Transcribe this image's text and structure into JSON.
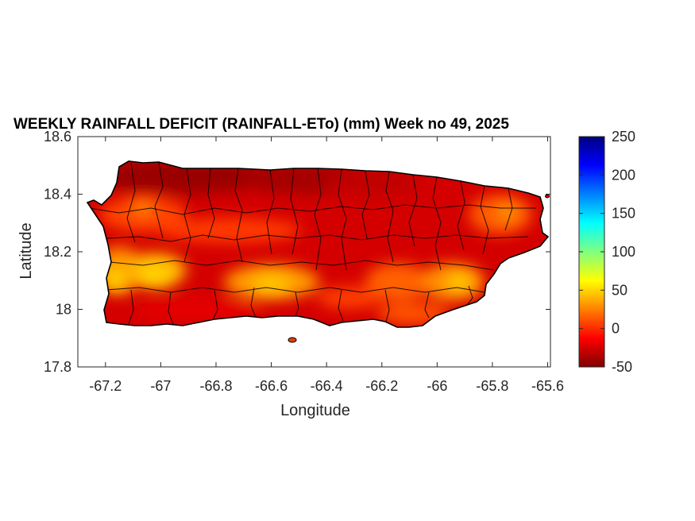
{
  "map": {
    "title": "WEEKLY RAINFALL DEFICIT (RAINFALL-ETo) (mm) Week no 49, 2025",
    "xlabel": "Longitude",
    "ylabel": "Latitude",
    "xlim": [
      -67.3,
      -65.59
    ],
    "ylim": [
      17.8,
      18.6
    ],
    "x_ticks": [
      "-67.2",
      "-67",
      "-66.8",
      "-66.6",
      "-66.4",
      "-66.2",
      "-66",
      "-65.8",
      "-65.6"
    ],
    "y_ticks": [
      "18.6",
      "18.4",
      "18.2",
      "18",
      "17.8"
    ],
    "region": "Puerto Rico municipalities",
    "colormap": "jet",
    "colors": {
      "deficit_dark": "#8b0000",
      "deficit": "#d40000",
      "mid": "#ff6a00",
      "yellow": "#ffd500",
      "border": "#000000"
    }
  },
  "colorbar": {
    "ticks": [
      "250",
      "200",
      "150",
      "100",
      "50",
      "0",
      "-50"
    ],
    "range": [
      -50,
      250
    ],
    "colors": [
      "#800000",
      "#ff0000",
      "#ff8000",
      "#ffff00",
      "#80ff80",
      "#00ffff",
      "#0080ff",
      "#0000ff",
      "#000080"
    ]
  }
}
